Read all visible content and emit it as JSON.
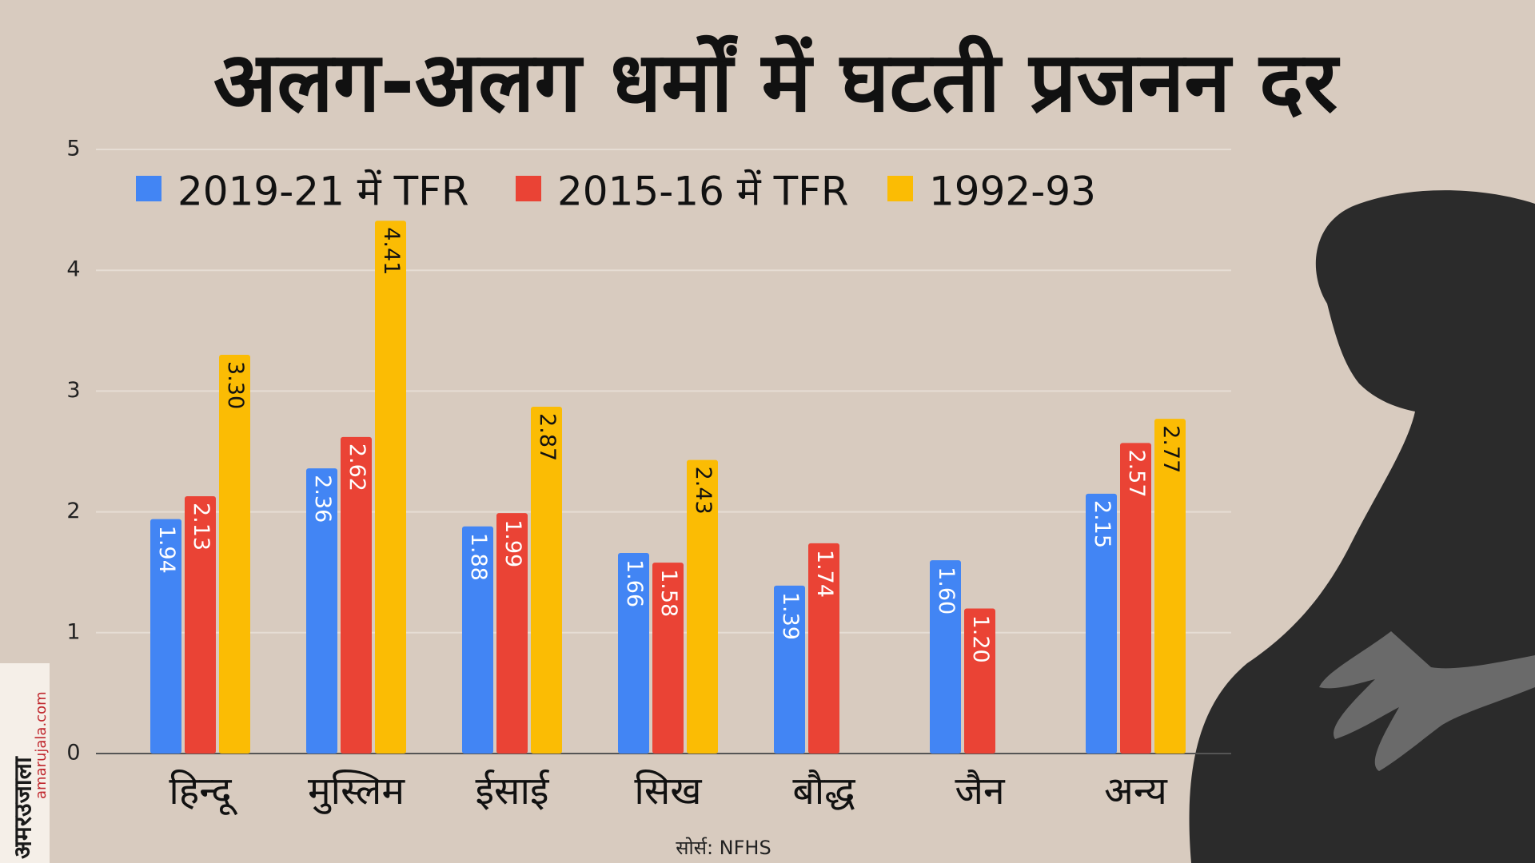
{
  "chart_data": {
    "type": "bar",
    "title": "अलग-अलग धर्मों में घटती प्रजनन दर",
    "source": "सोर्स: NFHS",
    "logo": [
      "अमरउजाला",
      "amarujala.com"
    ],
    "categories": [
      "हिन्दू",
      "मुस्लिम",
      "ईसाई",
      "सिख",
      "बौद्ध",
      "जैन",
      "अन्य"
    ],
    "series": [
      {
        "name": "2019-21 में TFR",
        "color": "#4285f4",
        "values": [
          1.94,
          2.36,
          1.88,
          1.66,
          1.39,
          1.6,
          2.15
        ],
        "value_labels": [
          "1.94",
          "2.36",
          "1.88",
          "1.66",
          "1.39",
          "1.60",
          "2.15"
        ]
      },
      {
        "name": "2015-16 में TFR",
        "color": "#ea4335",
        "values": [
          2.13,
          2.62,
          1.99,
          1.58,
          1.74,
          1.2,
          2.57
        ],
        "value_labels": [
          "2.13",
          "2.62",
          "1.99",
          "1.58",
          "1.74",
          "1.20",
          "2.57"
        ]
      },
      {
        "name": "1992-93",
        "color": "#fbbc04",
        "values": [
          3.3,
          4.41,
          2.87,
          2.43,
          null,
          null,
          2.77
        ],
        "value_labels": [
          "3.30",
          "4.41",
          "2.87",
          "2.43",
          null,
          null,
          "2.77"
        ]
      }
    ],
    "ylim": [
      0,
      5
    ],
    "yticks": [
      0,
      1,
      2,
      3,
      4,
      5
    ],
    "grid": true
  }
}
